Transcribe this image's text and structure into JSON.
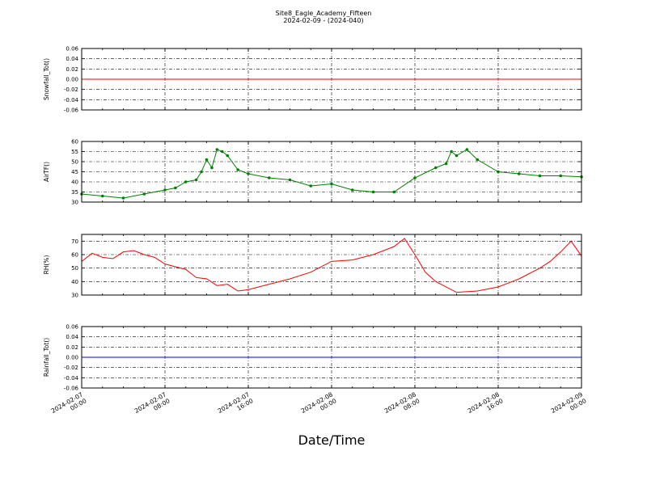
{
  "title": "Site8_Eagle_Academy_Fifteen",
  "subtitle": "2024-02-09 - (2024-040)",
  "xlabel": "Date/Time",
  "x_ticks": [
    {
      "line1": "2024-02-07",
      "line2": "00:00"
    },
    {
      "line1": "2024-02-07",
      "line2": "08:00"
    },
    {
      "line1": "2024-02-07",
      "line2": "16:00"
    },
    {
      "line1": "2024-02-08",
      "line2": "00:00"
    },
    {
      "line1": "2024-02-08",
      "line2": "08:00"
    },
    {
      "line1": "2024-02-08",
      "line2": "16:00"
    },
    {
      "line1": "2024-02-09",
      "line2": "00:00"
    }
  ],
  "colors": {
    "snowfall": "#ff0000",
    "airtf": "#008000",
    "rh": "#ff0000",
    "rainfall": "#0000ff"
  },
  "chart_data": [
    {
      "type": "line",
      "ylabel": "Snowfall_Tot()",
      "ylim": [
        -0.06,
        0.06
      ],
      "yticks": [
        "-0.06",
        "-0.04",
        "-0.02",
        "0.00",
        "0.02",
        "0.04",
        "0.06"
      ],
      "xlim": [
        "2024-02-07 00:00",
        "2024-02-09 00:00"
      ],
      "grid": true,
      "series": [
        {
          "x": [
            "2024-02-07 00:00",
            "2024-02-09 00:00"
          ],
          "values": [
            0,
            0
          ]
        }
      ]
    },
    {
      "type": "line",
      "ylabel": "AirTF()",
      "ylim": [
        30,
        60
      ],
      "yticks": [
        "30",
        "35",
        "40",
        "45",
        "50",
        "55",
        "60"
      ],
      "xlim": [
        "2024-02-07 00:00",
        "2024-02-09 00:00"
      ],
      "grid": true,
      "markers": true,
      "series": [
        {
          "x": [
            "2024-02-07 00:00",
            "2024-02-07 02:00",
            "2024-02-07 04:00",
            "2024-02-07 06:00",
            "2024-02-07 08:00",
            "2024-02-07 09:00",
            "2024-02-07 10:00",
            "2024-02-07 11:00",
            "2024-02-07 11:30",
            "2024-02-07 12:00",
            "2024-02-07 12:30",
            "2024-02-07 13:00",
            "2024-02-07 13:30",
            "2024-02-07 14:00",
            "2024-02-07 15:00",
            "2024-02-07 16:00",
            "2024-02-07 18:00",
            "2024-02-07 20:00",
            "2024-02-07 22:00",
            "2024-02-08 00:00",
            "2024-02-08 02:00",
            "2024-02-08 04:00",
            "2024-02-08 06:00",
            "2024-02-08 08:00",
            "2024-02-08 10:00",
            "2024-02-08 11:00",
            "2024-02-08 11:30",
            "2024-02-08 12:00",
            "2024-02-08 13:00",
            "2024-02-08 14:00",
            "2024-02-08 16:00",
            "2024-02-08 18:00",
            "2024-02-08 20:00",
            "2024-02-08 22:00",
            "2024-02-09 00:00"
          ],
          "values": [
            34,
            33,
            32,
            34,
            36,
            37,
            40,
            41,
            45,
            51,
            47,
            56,
            55,
            53,
            46,
            44,
            42,
            41,
            38,
            39,
            36,
            35,
            35,
            42,
            47,
            49,
            55,
            53,
            56,
            51,
            45,
            44,
            43,
            43,
            42.5
          ]
        }
      ]
    },
    {
      "type": "line",
      "ylabel": "RH(%)",
      "ylim": [
        30,
        75
      ],
      "yticks": [
        "30",
        "40",
        "50",
        "60",
        "70"
      ],
      "xlim": [
        "2024-02-07 00:00",
        "2024-02-09 00:00"
      ],
      "grid": true,
      "series": [
        {
          "x": [
            "2024-02-07 00:00",
            "2024-02-07 01:00",
            "2024-02-07 02:00",
            "2024-02-07 03:00",
            "2024-02-07 04:00",
            "2024-02-07 05:00",
            "2024-02-07 06:00",
            "2024-02-07 07:00",
            "2024-02-07 08:00",
            "2024-02-07 10:00",
            "2024-02-07 11:00",
            "2024-02-07 12:00",
            "2024-02-07 13:00",
            "2024-02-07 14:00",
            "2024-02-07 15:00",
            "2024-02-07 16:00",
            "2024-02-07 18:00",
            "2024-02-07 20:00",
            "2024-02-07 22:00",
            "2024-02-08 00:00",
            "2024-02-08 02:00",
            "2024-02-08 04:00",
            "2024-02-08 05:00",
            "2024-02-08 06:00",
            "2024-02-08 07:00",
            "2024-02-08 08:00",
            "2024-02-08 09:00",
            "2024-02-08 10:00",
            "2024-02-08 12:00",
            "2024-02-08 14:00",
            "2024-02-08 16:00",
            "2024-02-08 18:00",
            "2024-02-08 20:00",
            "2024-02-08 21:00",
            "2024-02-08 22:00",
            "2024-02-08 23:00",
            "2024-02-09 00:00"
          ],
          "values": [
            55,
            61,
            58,
            57,
            62,
            63,
            60,
            58,
            53,
            49,
            43,
            42,
            37,
            38,
            33,
            34,
            38,
            42,
            47,
            55,
            56,
            60,
            63,
            66,
            72,
            60,
            47,
            40,
            32,
            33,
            36,
            42,
            50,
            55,
            62,
            70,
            59
          ]
        }
      ]
    },
    {
      "type": "line",
      "ylabel": "Rainfall_Tot()",
      "ylim": [
        -0.06,
        0.06
      ],
      "yticks": [
        "-0.06",
        "-0.04",
        "-0.02",
        "0.00",
        "0.02",
        "0.04",
        "0.06"
      ],
      "xlim": [
        "2024-02-07 00:00",
        "2024-02-09 00:00"
      ],
      "grid": true,
      "series": [
        {
          "x": [
            "2024-02-07 00:00",
            "2024-02-09 00:00"
          ],
          "values": [
            0,
            0
          ]
        }
      ]
    }
  ]
}
